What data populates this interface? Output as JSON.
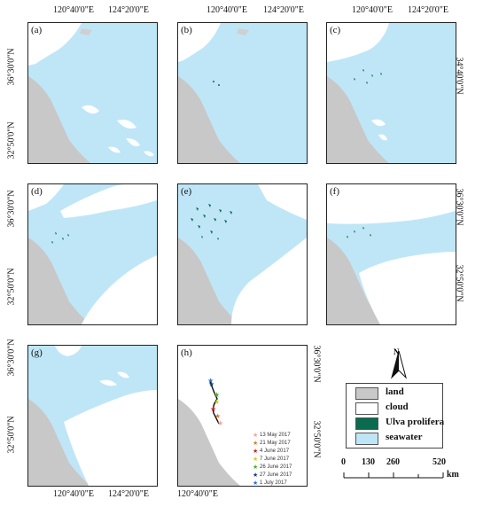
{
  "coords": {
    "lon_left": "120°40'0\"E",
    "lon_right": "124°20'0\"E",
    "lat_upper": "36°30'0\"N",
    "lat_lower": "32°50'0\"N",
    "lat_mid": "34°40'0\"N"
  },
  "panels": {
    "a": "(a)",
    "b": "(b)",
    "c": "(c)",
    "d": "(d)",
    "e": "(e)",
    "f": "(f)",
    "g": "(g)",
    "h": "(h)"
  },
  "legend": {
    "items": [
      {
        "label": "land",
        "color": "#c8c8c8"
      },
      {
        "label": "cloud",
        "color": "#ffffff"
      },
      {
        "label": "Ulva prolifera",
        "color": "#0b6b4f"
      },
      {
        "label": "seawater",
        "color": "#bfe6f7"
      }
    ],
    "north_label": "N",
    "scale_ticks": [
      "0",
      "130",
      "260",
      "520"
    ],
    "scale_unit": "km"
  },
  "track_dates": [
    {
      "label": "13 May 2017",
      "color": "#f4a0a0"
    },
    {
      "label": "21 May  2017",
      "color": "#e57b2a"
    },
    {
      "label": "4 June 2017",
      "color": "#d42020"
    },
    {
      "label": "7 June 2017",
      "color": "#c8d020"
    },
    {
      "label": "26 June 2017",
      "color": "#4caf2a"
    },
    {
      "label": "27 June 2017",
      "color": "#1b3f7a"
    },
    {
      "label": "1 July 2017",
      "color": "#2a6fe0"
    }
  ],
  "colors": {
    "land": "#c8c8c8",
    "sea": "#bfe6f7",
    "algae": "#0b6b4f",
    "cloud": "#ffffff"
  }
}
